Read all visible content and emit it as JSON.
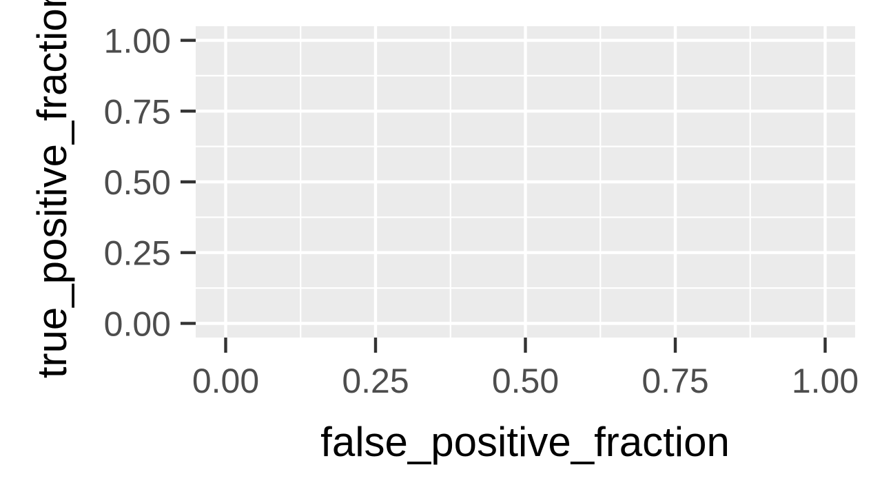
{
  "chart_data": {
    "type": "line",
    "title": "",
    "xlabel": "false_positive_fraction",
    "ylabel": "true_positive_fraction",
    "xlim": [
      -0.05,
      1.05
    ],
    "ylim": [
      -0.05,
      1.05
    ],
    "x_ticks": [
      0,
      0.25,
      0.5,
      0.75,
      1
    ],
    "x_tick_labels": [
      "0.00",
      "0.25",
      "0.50",
      "0.75",
      "1.00"
    ],
    "y_ticks": [
      0,
      0.25,
      0.5,
      0.75,
      1
    ],
    "y_tick_labels": [
      "0.00",
      "0.25",
      "0.50",
      "0.75",
      "1.00"
    ],
    "series": [],
    "grid": true,
    "colors": {
      "panel_background": "#ebebeb",
      "grid_major": "#ffffff",
      "grid_minor": "#ffffff",
      "tick": "#333333",
      "tick_label": "#4d4d4d",
      "axis_title": "#000000"
    }
  }
}
